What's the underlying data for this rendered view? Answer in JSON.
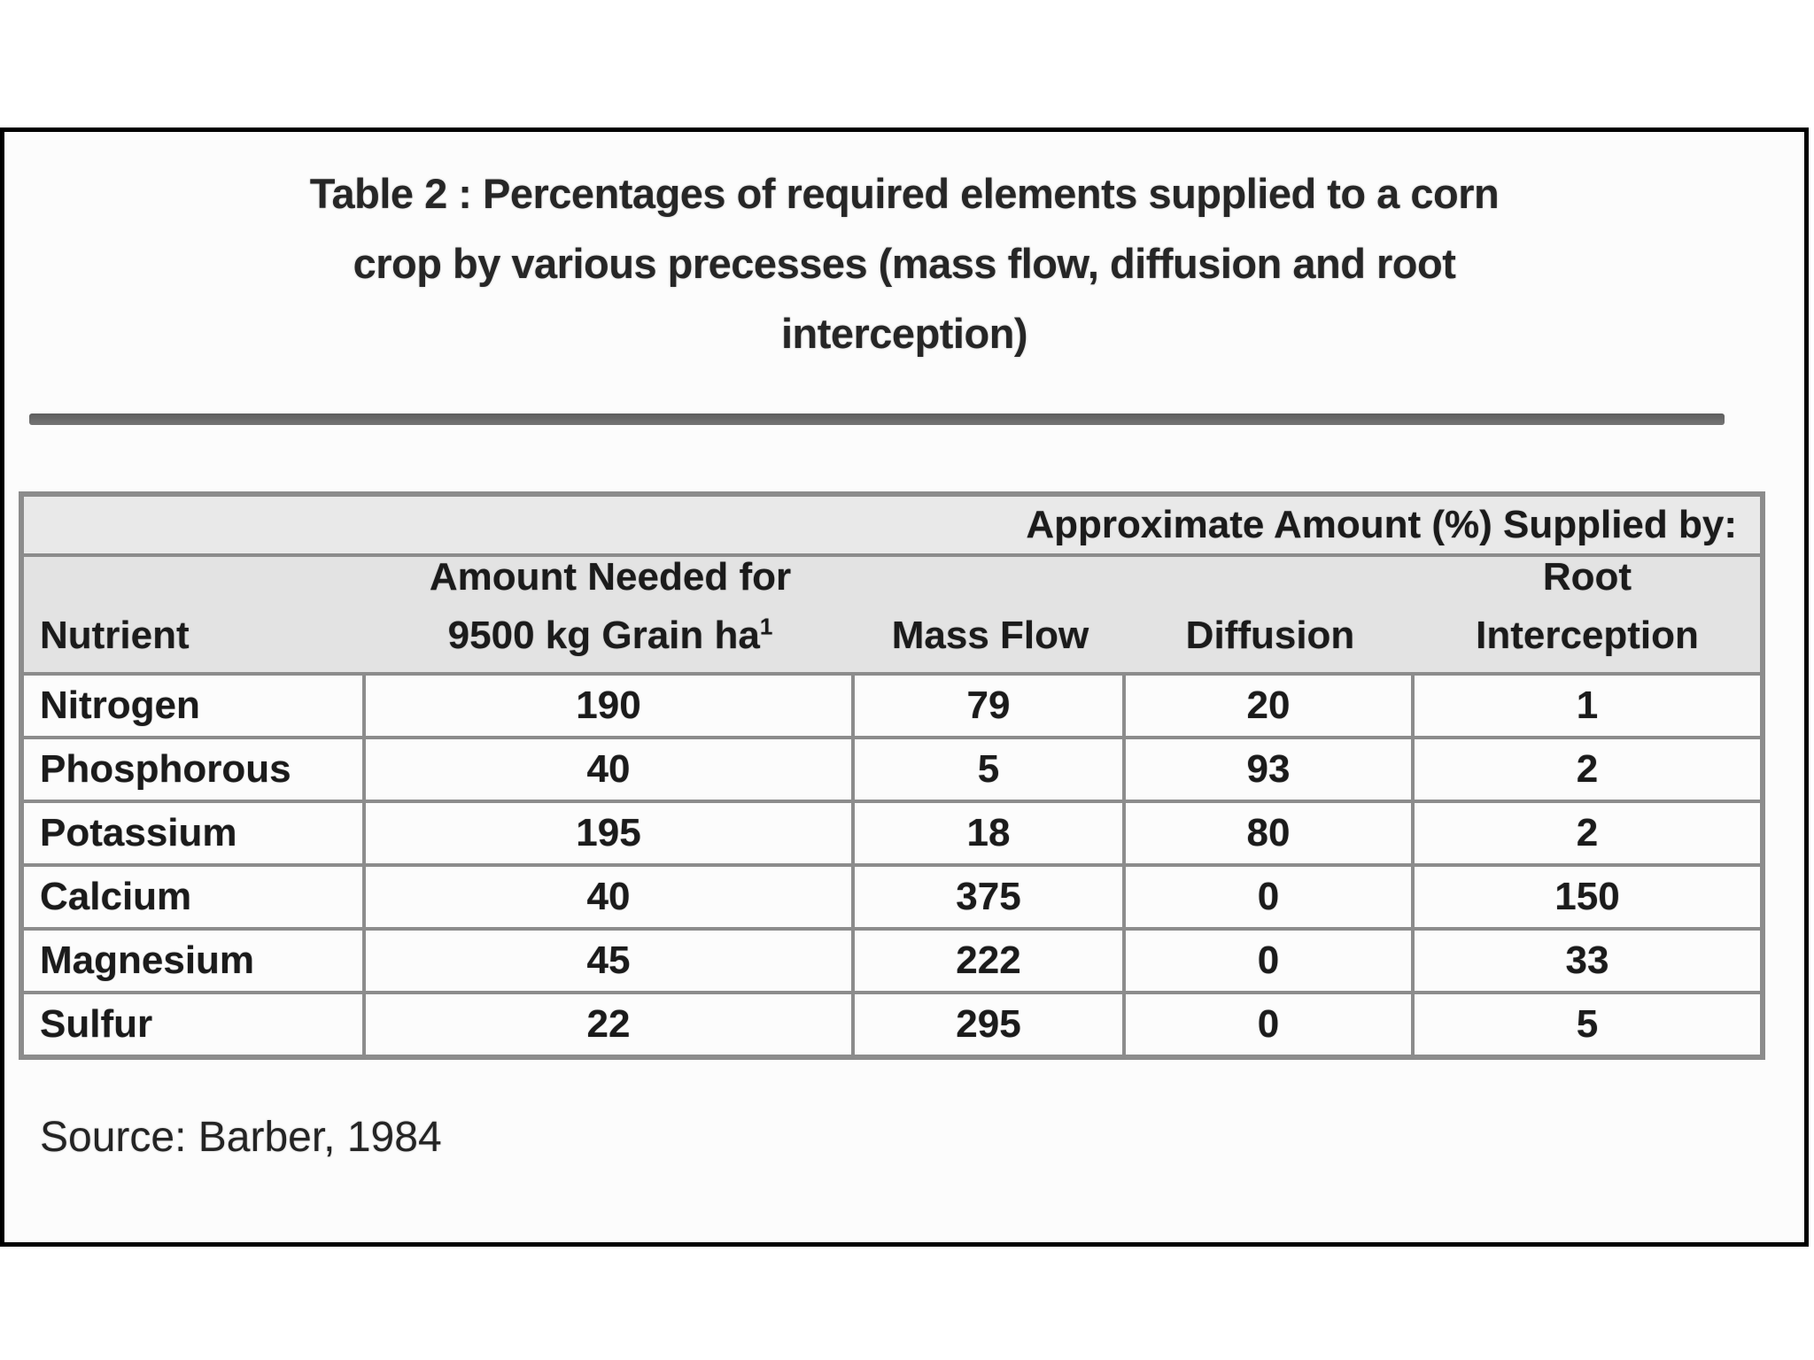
{
  "document": {
    "title_lines": [
      "Table 2 : Percentages of required elements supplied to a corn",
      "crop by various precesses (mass flow, diffusion and root",
      "interception)"
    ],
    "source": "Source: Barber, 1984"
  },
  "table": {
    "span_header": "Approximate Amount (%) Supplied by:",
    "headers": {
      "nutrient": "Nutrient",
      "amount_line1": "Amount Needed for",
      "amount_line2": "9500 kg Grain ha",
      "amount_sup": "1",
      "mass_flow": "Mass Flow",
      "diffusion": "Diffusion",
      "root_line1": "Root",
      "root_line2": "Interception"
    },
    "rows": [
      {
        "nutrient": "Nitrogen",
        "amount": "190",
        "mass_flow": "79",
        "diffusion": "20",
        "root_interception": "1"
      },
      {
        "nutrient": "Phosphorous",
        "amount": "40",
        "mass_flow": "5",
        "diffusion": "93",
        "root_interception": "2"
      },
      {
        "nutrient": "Potassium",
        "amount": "195",
        "mass_flow": "18",
        "diffusion": "80",
        "root_interception": "2"
      },
      {
        "nutrient": "Calcium",
        "amount": "40",
        "mass_flow": "375",
        "diffusion": "0",
        "root_interception": "150"
      },
      {
        "nutrient": "Magnesium",
        "amount": "45",
        "mass_flow": "222",
        "diffusion": "0",
        "root_interception": "33"
      },
      {
        "nutrient": "Sulfur",
        "amount": "22",
        "mass_flow": "295",
        "diffusion": "0",
        "root_interception": "5"
      }
    ],
    "colors": {
      "frame_border": "#000000",
      "table_border": "#8c8c8c",
      "header_bg": "#e3e3e3",
      "row_bg": "#fcfcfc",
      "rule": "#696969"
    }
  }
}
